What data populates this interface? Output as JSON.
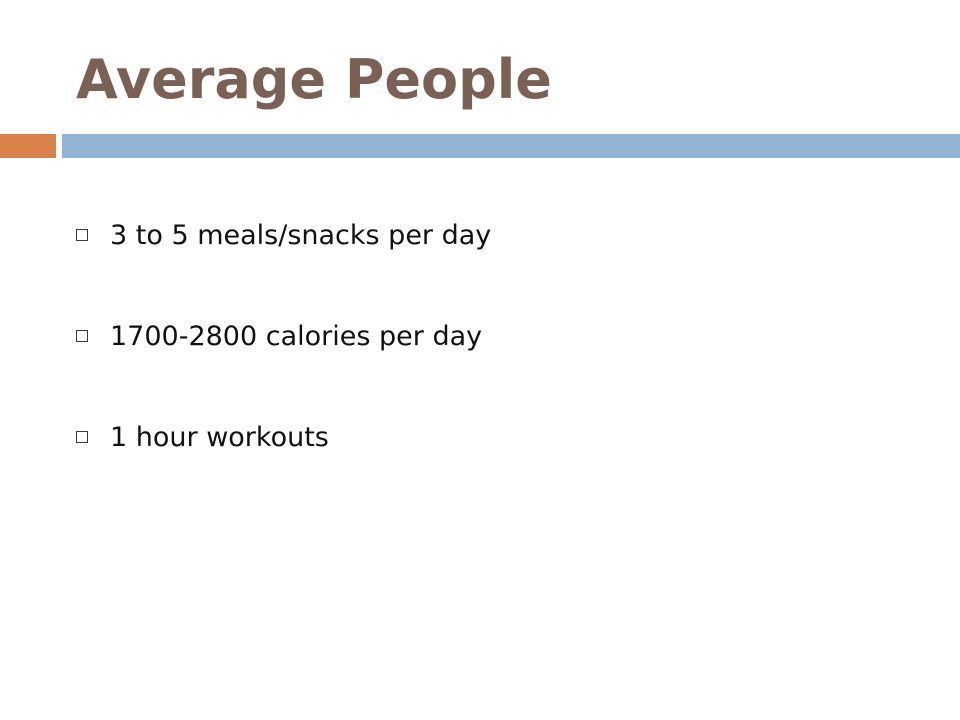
{
  "slide": {
    "title": "Average People",
    "colors": {
      "title": "#7a6055",
      "accent_orange": "#d9834a",
      "accent_blue": "#93b4d3"
    },
    "bullets": [
      {
        "text": "3 to 5 meals/snacks per day",
        "marker_icon": "hollow-square-icon"
      },
      {
        "text": "1700-2800 calories per day",
        "marker_icon": "hollow-square-icon"
      },
      {
        "text": "1 hour workouts",
        "marker_icon": "hollow-square-icon"
      }
    ]
  }
}
